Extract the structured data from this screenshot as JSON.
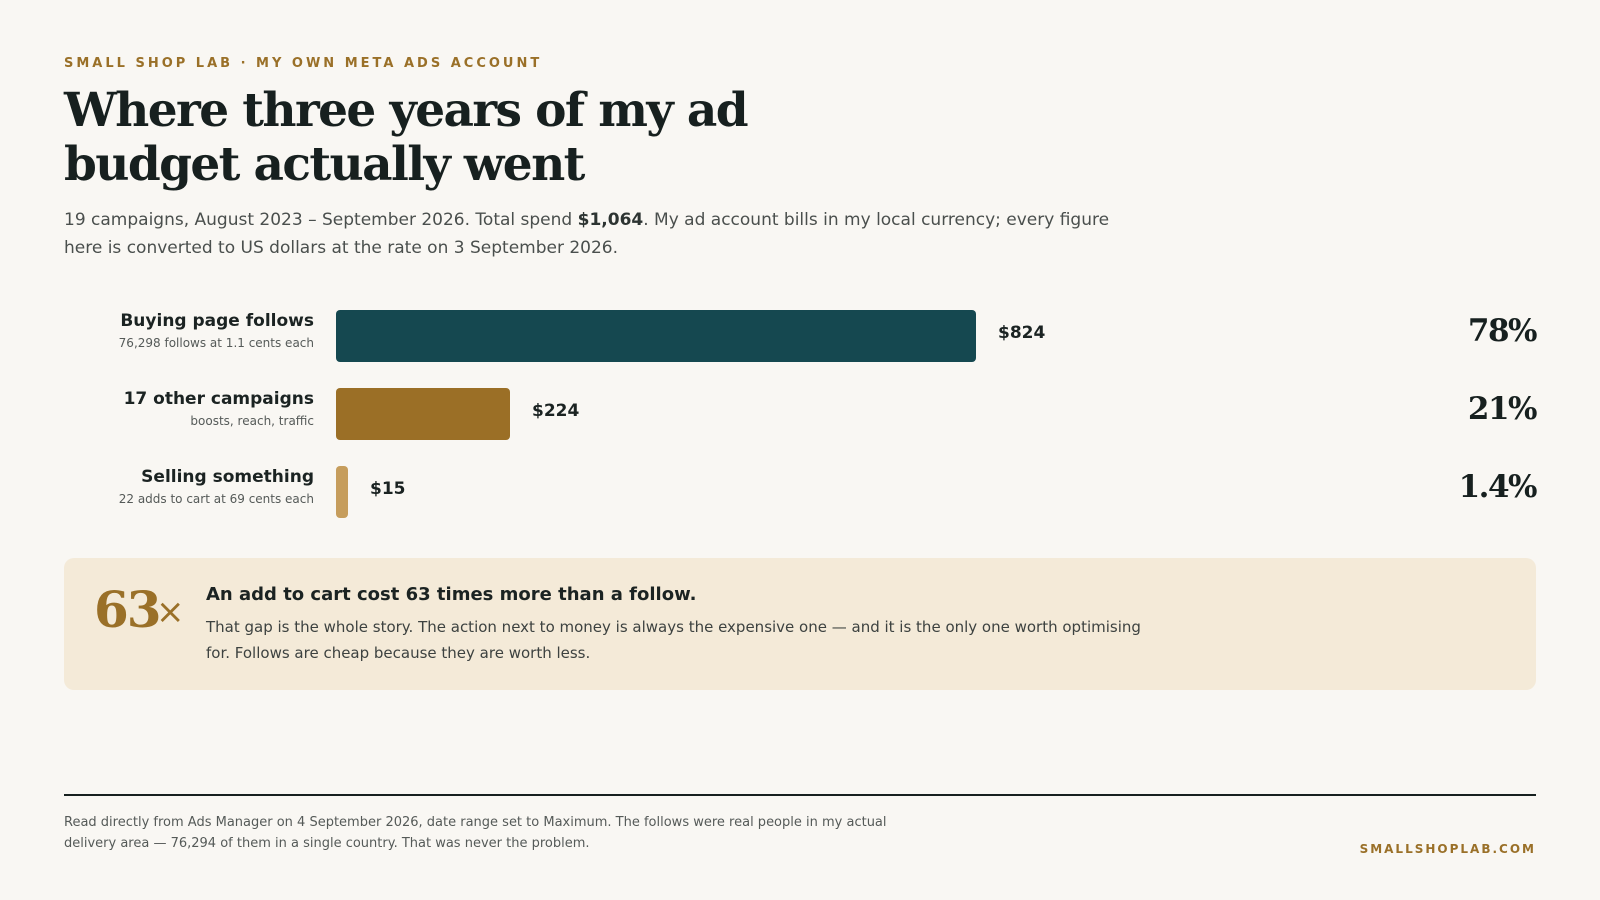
{
  "header": {
    "eyebrow": "SMALL SHOP LAB · MY OWN META ADS ACCOUNT",
    "title": "Where three years of my ad budget actually went",
    "subtitle_pre": "19 campaigns, August 2023 – September 2026. Total spend ",
    "subtitle_total": "$1,064",
    "subtitle_post": ". My ad account bills in my local currency; every figure here is converted to US dollars at the rate on 3 September 2026."
  },
  "chart_data": {
    "type": "bar",
    "orientation": "horizontal",
    "categories": [
      "Buying page follows",
      "17 other campaigns",
      "Selling something"
    ],
    "category_notes": [
      "76,298 follows at 1.1 cents each",
      "boosts, reach, traffic",
      "22 adds to cart at 69 cents each"
    ],
    "values": [
      824,
      224,
      15
    ],
    "value_labels": [
      "$824",
      "$224",
      "$15"
    ],
    "share_labels": [
      "78%",
      "21%",
      "1.4%"
    ],
    "colors": [
      "#154850",
      "#9b6f26",
      "#c69d5c"
    ],
    "xlim": [
      0,
      824
    ],
    "grid": false,
    "legend": "none",
    "title": "",
    "xlabel": "",
    "ylabel": ""
  },
  "callout": {
    "big_number": "63",
    "big_suffix": "×",
    "headline": "An add to cart cost 63 times more than a follow.",
    "body": "That gap is the whole story. The action next to money is always the expensive one — and it is the only one worth optimising for. Follows are cheap because they are worth less."
  },
  "footer": {
    "note": "Read directly from Ads Manager on 4 September 2026, date range set to Maximum. The follows were real people in my actual delivery area — 76,294 of them in a single country. That was never the problem.",
    "site": "SMALLSHOPLAB.COM"
  },
  "colors": {
    "background": "#f9f7f3",
    "accent": "#9a7028",
    "callout_bg": "#f4ead8"
  }
}
